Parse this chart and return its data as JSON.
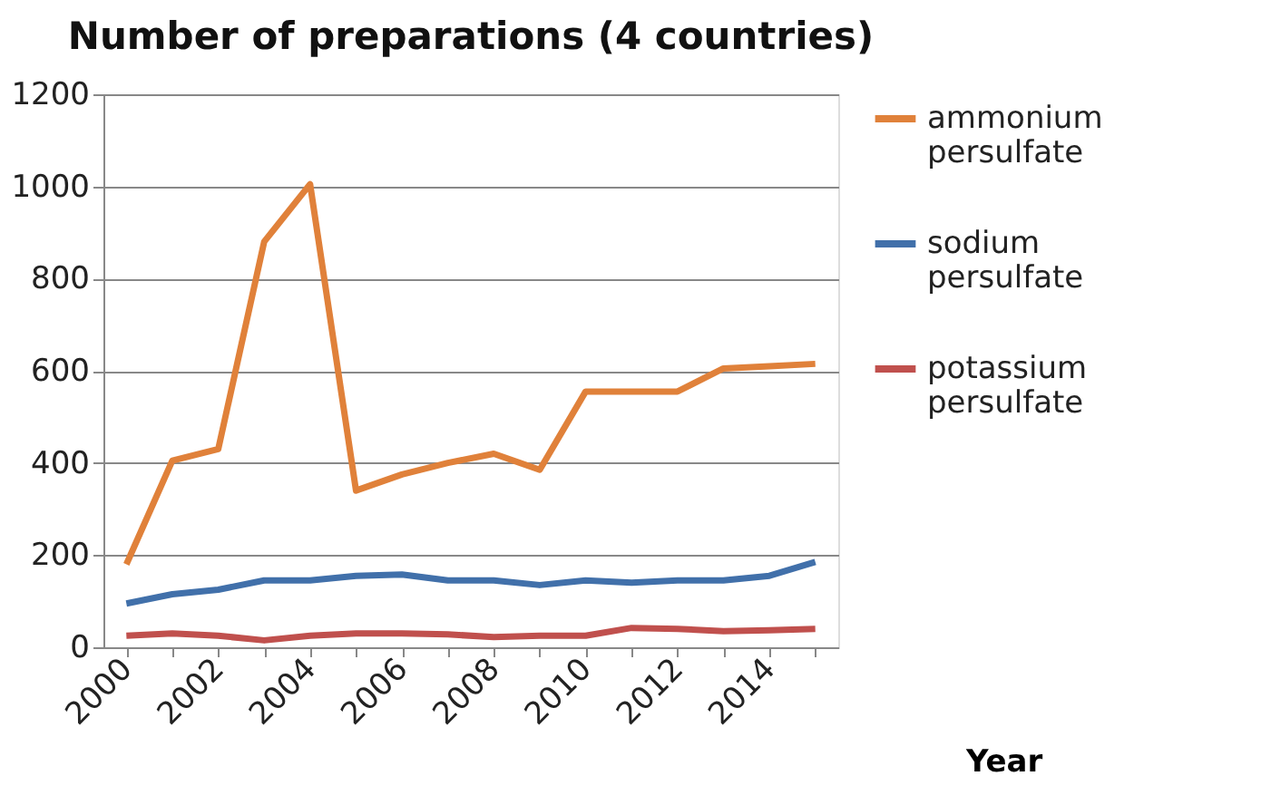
{
  "chart_data": {
    "type": "line",
    "title": "Number of preparations (4 countries)",
    "xlabel": "Year",
    "categories": [
      "2000",
      null,
      "2002",
      null,
      "2004",
      null,
      "2006",
      null,
      "2008",
      null,
      "2010",
      null,
      "2012",
      null,
      "2014",
      null
    ],
    "series": [
      {
        "name": "ammonium persulfate",
        "color": "#e0813a",
        "values": [
          180,
          405,
          430,
          880,
          1005,
          340,
          375,
          400,
          420,
          385,
          555,
          555,
          555,
          605,
          610,
          615
        ]
      },
      {
        "name": "sodium persulfate",
        "color": "#4170aa",
        "values": [
          95,
          115,
          125,
          145,
          145,
          155,
          158,
          145,
          145,
          135,
          145,
          140,
          145,
          145,
          155,
          185
        ]
      },
      {
        "name": "potassium persulfate",
        "color": "#c0504d",
        "values": [
          25,
          30,
          25,
          15,
          25,
          30,
          30,
          28,
          22,
          25,
          25,
          42,
          40,
          35,
          37,
          40
        ]
      }
    ],
    "ylim": [
      0,
      1200
    ],
    "yticks": [
      0,
      200,
      400,
      600,
      800,
      1000,
      1200
    ],
    "grid": "y",
    "legend": "right",
    "marker": "none",
    "line_style": "solid"
  }
}
